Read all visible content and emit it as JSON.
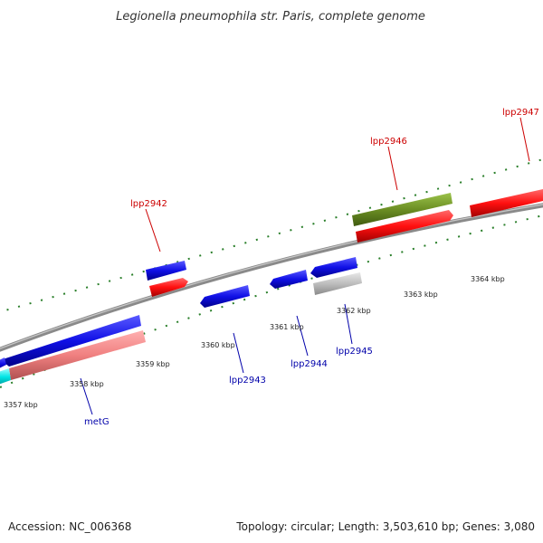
{
  "title": "Legionella pneumophila str. Paris, complete genome",
  "footer": {
    "accession": "Accession: NC_006368",
    "summary": "Topology: circular; Length: 3,503,610 bp; Genes: 3,080"
  },
  "colors": {
    "forward_blue": "#1010e6",
    "reverse_red": "#ff1010",
    "olive": "#6b8e23",
    "salmon": "#f08080",
    "gray_gene": "#bdbdbd",
    "cyan": "#00e5e5",
    "tick_green": "#2a7f2a",
    "backbone": "#8a8a8a",
    "label_red": "#cc0000",
    "label_blue": "#0000aa"
  },
  "scale_labels": [
    "3357 kbp",
    "3358 kbp",
    "3359 kbp",
    "3360 kbp",
    "3361 kbp",
    "3362 kbp",
    "3363 kbp",
    "3364 kbp"
  ],
  "gene_labels": {
    "lpp2942": "lpp2942",
    "lpp2946": "lpp2946",
    "lpp2947": "lpp2947",
    "lpp2943": "lpp2943",
    "lpp2944": "lpp2944",
    "lpp2945": "lpp2945",
    "metG": "metG"
  }
}
